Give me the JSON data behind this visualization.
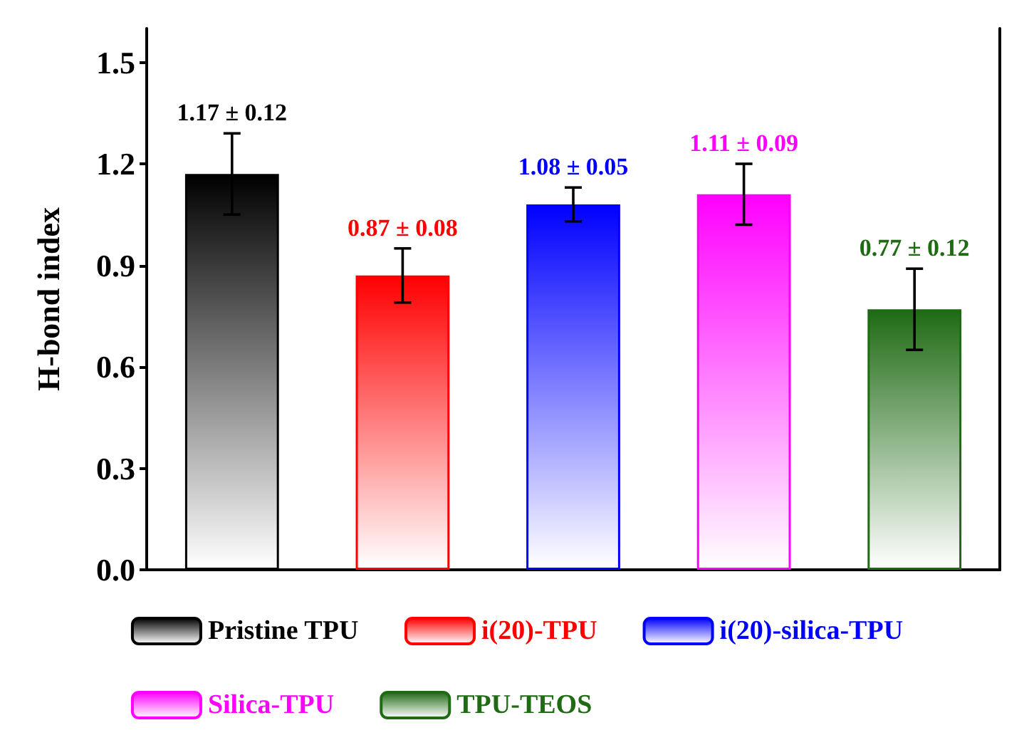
{
  "chart_data": {
    "type": "bar",
    "ylabel": "H-bond index",
    "categories": [
      null,
      null,
      null,
      null,
      null
    ],
    "series": [
      {
        "name": "Pristine TPU",
        "color": "#000000",
        "values": [
          1.17,
          null,
          null,
          null,
          null
        ],
        "errors": [
          0.12,
          null,
          null,
          null,
          null
        ],
        "value_labels": [
          "1.17 ± 0.12",
          null,
          null,
          null,
          null
        ]
      },
      {
        "name": "i(20)-TPU",
        "color": "#ff0000",
        "values": [
          null,
          0.87,
          null,
          null,
          null
        ],
        "errors": [
          null,
          0.08,
          null,
          null,
          null
        ],
        "value_labels": [
          null,
          "0.87 ± 0.08",
          null,
          null,
          null
        ]
      },
      {
        "name": "i(20)-silica-TPU",
        "color": "#0000ff",
        "values": [
          null,
          null,
          1.08,
          null,
          null
        ],
        "errors": [
          null,
          null,
          0.05,
          null,
          null
        ],
        "value_labels": [
          null,
          null,
          "1.08 ± 0.05",
          null,
          null
        ]
      },
      {
        "name": "Silica-TPU",
        "color": "#ff00ff",
        "values": [
          null,
          null,
          null,
          1.11,
          null
        ],
        "errors": [
          null,
          null,
          null,
          0.09,
          null
        ],
        "value_labels": [
          null,
          null,
          null,
          "1.11 ± 0.09",
          null
        ]
      },
      {
        "name": "TPU-TEOS",
        "color": "#1f6b14",
        "values": [
          null,
          null,
          null,
          null,
          0.77
        ],
        "errors": [
          null,
          null,
          null,
          null,
          0.12
        ],
        "value_labels": [
          null,
          null,
          null,
          null,
          "0.77 ± 0.12"
        ]
      }
    ],
    "ylim": [
      0,
      1.6
    ],
    "yticks": [
      {
        "value": 0,
        "label": "0.0"
      },
      0.3,
      0.6,
      0.9,
      1.2,
      1.5
    ],
    "grid": false,
    "legend": "bottom"
  }
}
